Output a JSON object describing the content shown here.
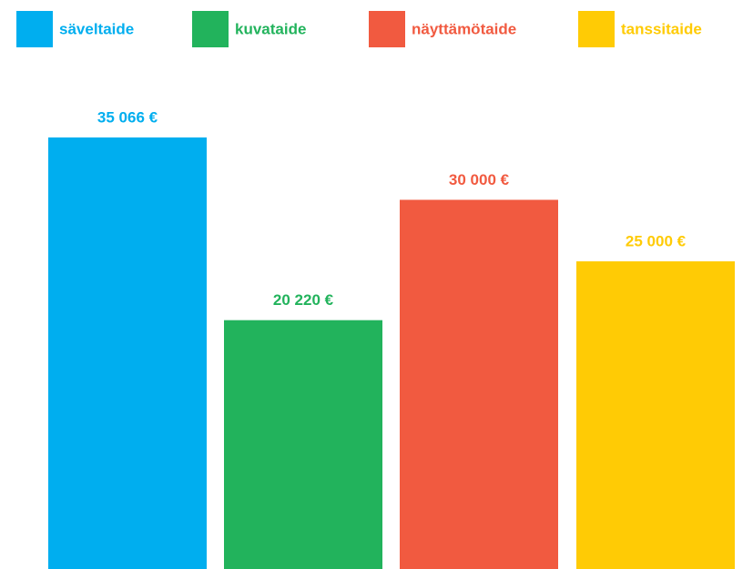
{
  "chart_data": {
    "type": "bar",
    "categories": [
      "säveltaide",
      "kuvataide",
      "näyttämötaide",
      "tanssitaide"
    ],
    "values": [
      35066,
      20220,
      30000,
      25000
    ],
    "value_labels": [
      "35 066 €",
      "20 220 €",
      "30 000 €",
      "25 000 €"
    ],
    "colors": [
      "#00aeef",
      "#22b35c",
      "#f15a40",
      "#ffcb05"
    ]
  }
}
